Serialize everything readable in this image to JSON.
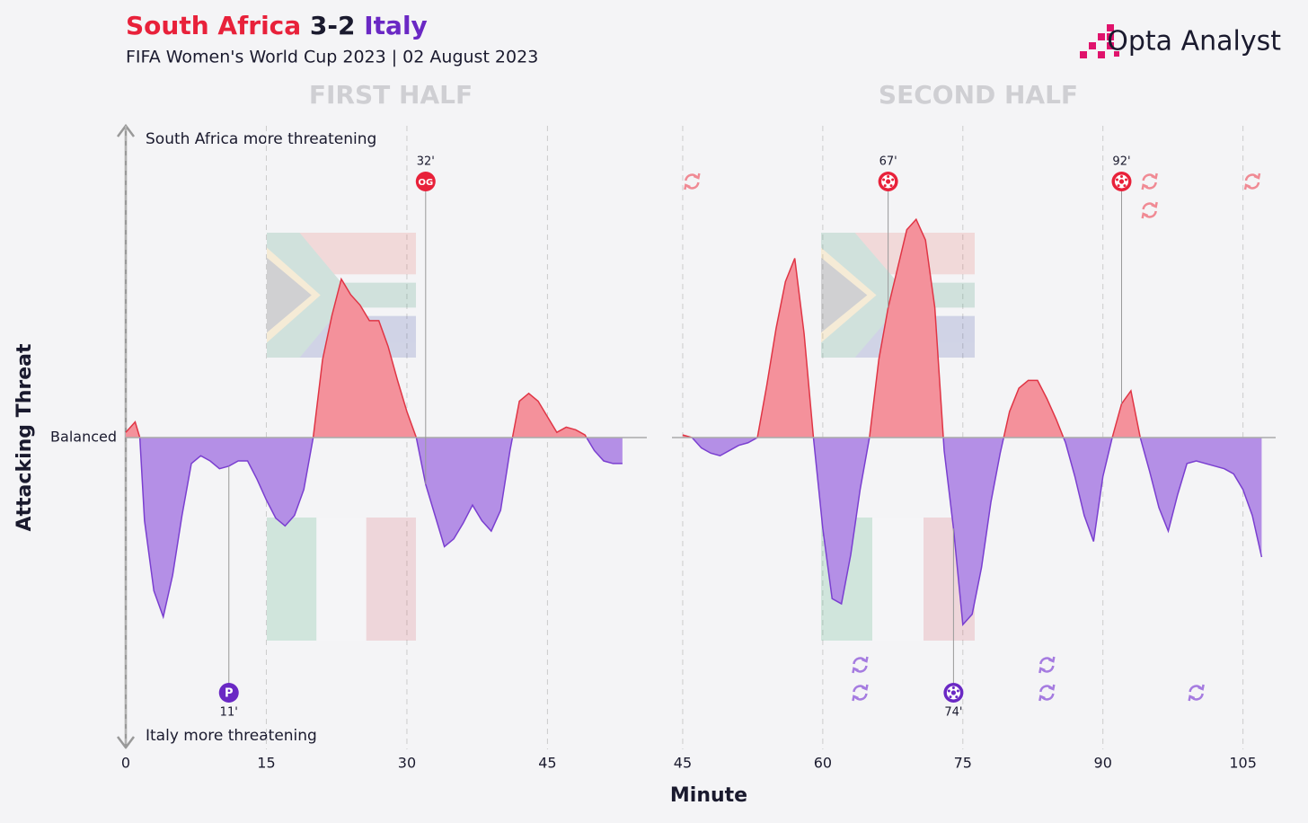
{
  "header": {
    "home": {
      "name": "South Africa",
      "color": "#e8213a"
    },
    "score": "3-2",
    "away": {
      "name": "Italy",
      "color": "#6a28c4"
    },
    "subtitle": "FIFA Women's World Cup 2023 | 02 August 2023",
    "brand": "Opta Analyst",
    "xlabel": "Minute",
    "ylabel": "Attacking Threat",
    "top_label": "South Africa more threatening",
    "bottom_label": "Italy more threatening",
    "baseline_label": "Balanced"
  },
  "chart_data": [
    {
      "type": "area",
      "title": "FIRST HALF",
      "positive_color": "#f4919b",
      "negative_color": "#b48fe6",
      "xlim": [
        0,
        55.6
      ],
      "ylim": [
        -1.2,
        1.2
      ],
      "xticks": [
        0,
        15,
        30,
        45
      ],
      "grid": true,
      "x": [
        0,
        1,
        1.5,
        2,
        3,
        4,
        5,
        6,
        7,
        8,
        9,
        10,
        11,
        12,
        13,
        14,
        15,
        16,
        17,
        18,
        19,
        20,
        21,
        22,
        23,
        24,
        25,
        26,
        27,
        28,
        29,
        30,
        31,
        32,
        33,
        34,
        35,
        36,
        37,
        38,
        39,
        40,
        41,
        42,
        43,
        44,
        45,
        46,
        47,
        48,
        49,
        50,
        51,
        52,
        53
      ],
      "values": [
        0.02,
        0.06,
        0,
        -0.32,
        -0.59,
        -0.69,
        -0.53,
        -0.3,
        -0.1,
        -0.07,
        -0.09,
        -0.12,
        -0.11,
        -0.09,
        -0.09,
        -0.16,
        -0.24,
        -0.31,
        -0.34,
        -0.3,
        -0.2,
        0,
        0.3,
        0.47,
        0.61,
        0.55,
        0.51,
        0.45,
        0.45,
        0.35,
        0.22,
        0.1,
        0,
        -0.18,
        -0.3,
        -0.42,
        -0.39,
        -0.33,
        -0.26,
        -0.32,
        -0.36,
        -0.28,
        -0.05,
        0.14,
        0.17,
        0.14,
        0.08,
        0.02,
        0.04,
        0.03,
        0.01,
        -0.05,
        -0.09,
        -0.1,
        -0.1
      ],
      "goals": [
        {
          "team": "South Africa",
          "minute": 32,
          "label": "32'",
          "badge": "OG"
        },
        {
          "team": "Italy",
          "minute": 11,
          "label": "11'",
          "badge": "P"
        }
      ],
      "substitutions": []
    },
    {
      "type": "area",
      "title": "SECOND HALF",
      "positive_color": "#f4919b",
      "negative_color": "#b48fe6",
      "xlim": [
        43.85,
        108.5
      ],
      "ylim": [
        -1.2,
        1.2
      ],
      "xticks": [
        45,
        60,
        75,
        90,
        105
      ],
      "grid": true,
      "x": [
        45,
        46,
        47,
        48,
        49,
        50,
        51,
        52,
        53,
        54,
        55,
        56,
        57,
        58,
        59,
        60,
        61,
        62,
        63,
        64,
        65,
        66,
        67,
        68,
        69,
        70,
        71,
        72,
        73,
        74,
        75,
        76,
        77,
        78,
        79,
        80,
        81,
        82,
        83,
        84,
        85,
        86,
        87,
        88,
        89,
        90,
        91,
        92,
        93,
        94,
        95,
        96,
        97,
        98,
        99,
        100,
        101,
        102,
        103,
        104,
        105,
        106,
        107
      ],
      "values": [
        0.01,
        0,
        -0.04,
        -0.06,
        -0.07,
        -0.05,
        -0.03,
        -0.02,
        0,
        0.2,
        0.42,
        0.6,
        0.69,
        0.4,
        0,
        -0.35,
        -0.62,
        -0.64,
        -0.45,
        -0.2,
        0,
        0.3,
        0.5,
        0.65,
        0.8,
        0.84,
        0.76,
        0.5,
        -0.05,
        -0.35,
        -0.72,
        -0.68,
        -0.5,
        -0.25,
        -0.06,
        0.1,
        0.19,
        0.22,
        0.22,
        0.15,
        0.07,
        -0.02,
        -0.15,
        -0.3,
        -0.4,
        -0.15,
        0,
        0.13,
        0.18,
        0,
        -0.13,
        -0.27,
        -0.36,
        -0.22,
        -0.1,
        -0.09,
        -0.1,
        -0.11,
        -0.12,
        -0.14,
        -0.2,
        -0.3,
        -0.46
      ],
      "goals": [
        {
          "team": "South Africa",
          "minute": 67,
          "label": "67'",
          "badge": null
        },
        {
          "team": "South Africa",
          "minute": 92,
          "label": "92'",
          "badge": null
        },
        {
          "team": "Italy",
          "minute": 74,
          "label": "74'",
          "badge": null
        }
      ],
      "substitutions": [
        {
          "team": "South Africa",
          "minute": 46
        },
        {
          "team": "South Africa",
          "minute": 95
        },
        {
          "team": "South Africa",
          "minute": 95
        },
        {
          "team": "South Africa",
          "minute": 106
        },
        {
          "team": "Italy",
          "minute": 64
        },
        {
          "team": "Italy",
          "minute": 64
        },
        {
          "team": "Italy",
          "minute": 84
        },
        {
          "team": "Italy",
          "minute": 84
        },
        {
          "team": "Italy",
          "minute": 100
        }
      ]
    }
  ]
}
